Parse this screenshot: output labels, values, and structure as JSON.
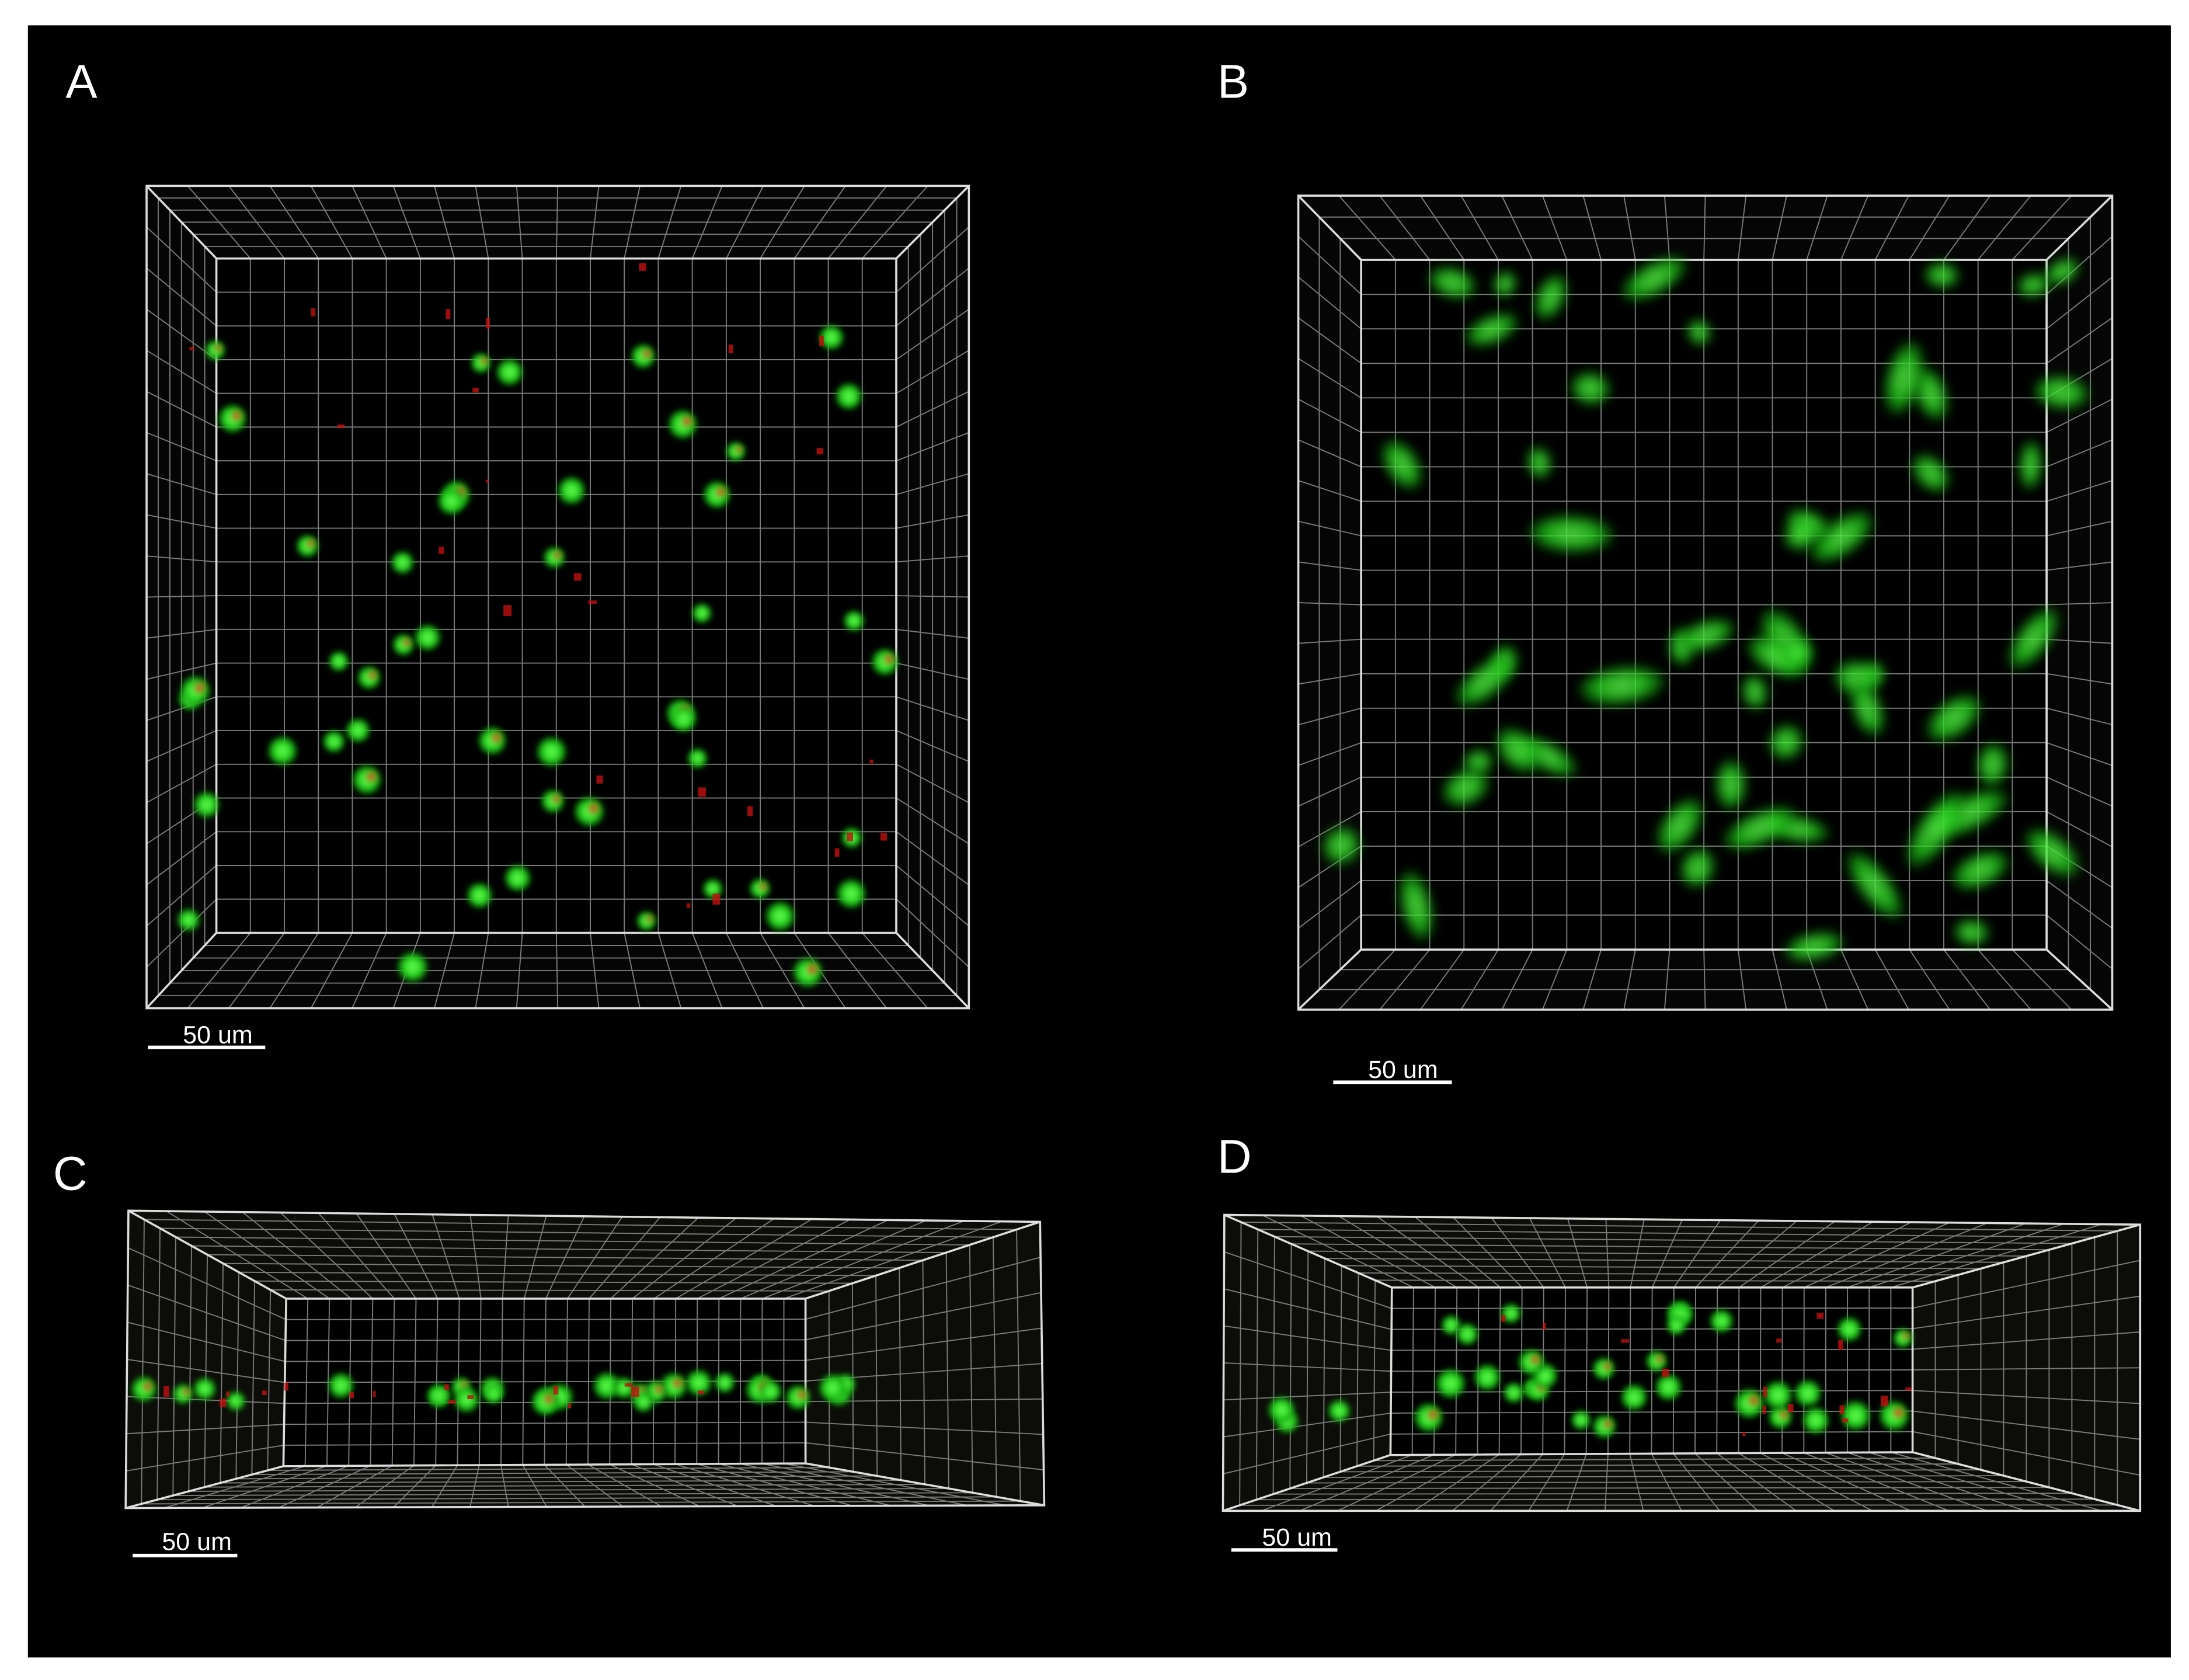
{
  "panels": [
    {
      "label": "A",
      "scale_bar": "50 um"
    },
    {
      "label": "B",
      "scale_bar": "50 um"
    },
    {
      "label": "C",
      "scale_bar": "50 um"
    },
    {
      "label": "D",
      "scale_bar": "50 um"
    }
  ]
}
